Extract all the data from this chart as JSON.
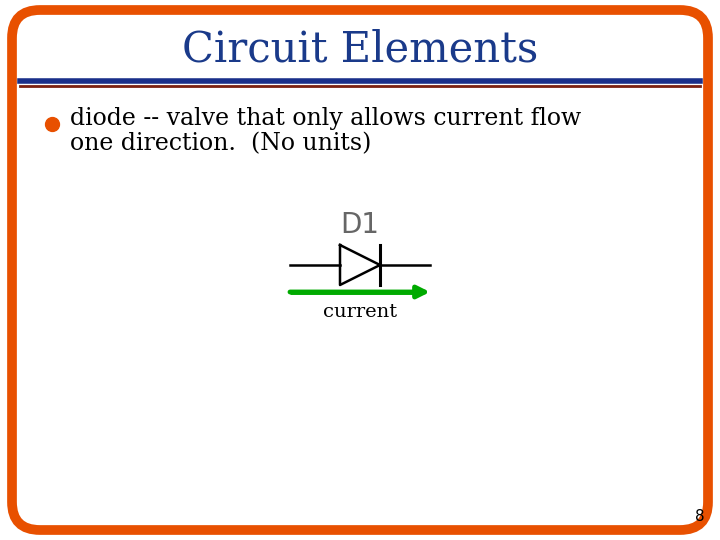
{
  "title": "Circuit Elements",
  "title_color": "#1a3a8a",
  "title_fontsize": 30,
  "bg_color": "#ffffff",
  "border_color": "#e85000",
  "border_linewidth": 7,
  "header_line1_color": "#1a2f8a",
  "header_line1_lw": 4,
  "header_line2_color": "#7b2010",
  "header_line2_lw": 2,
  "bullet_color": "#e85000",
  "bullet_fontsize": 17,
  "bullet_text_color": "#000000",
  "bullet_line1": "diode -- valve that only allows current flow",
  "bullet_line2": "one direction.  (No units)",
  "label_d1": "D1",
  "label_d1_color": "#666666",
  "label_d1_fontsize": 20,
  "current_label": "current",
  "current_label_color": "#000000",
  "current_label_fontsize": 14,
  "arrow_color": "#00aa00",
  "diode_color": "#000000",
  "page_number": "8",
  "page_number_color": "#000000",
  "page_number_fontsize": 11
}
